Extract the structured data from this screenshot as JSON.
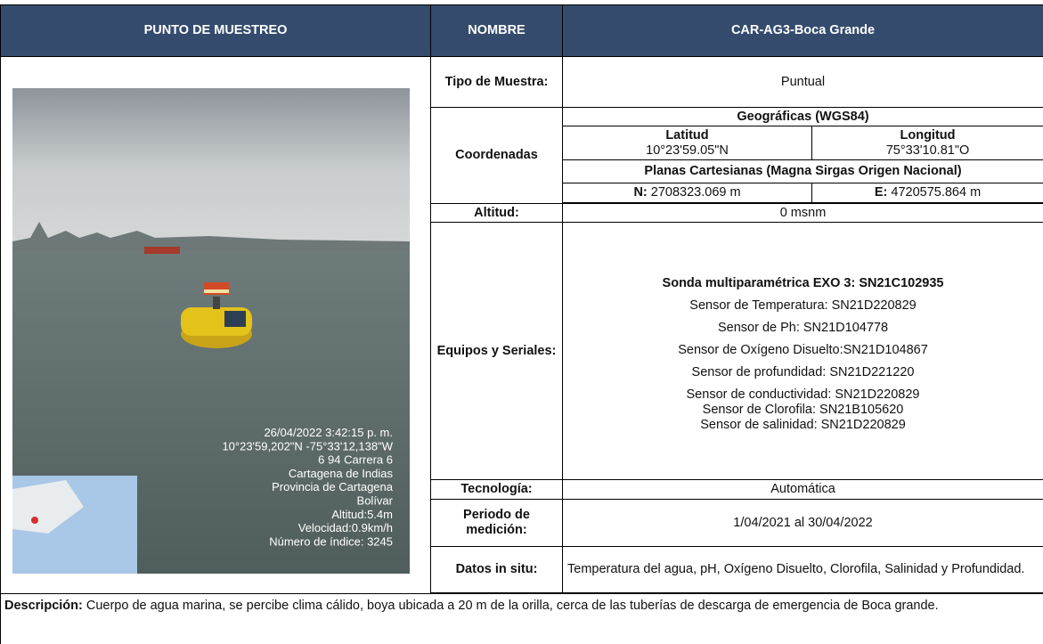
{
  "header": {
    "col1": "PUNTO DE MUESTREO",
    "col2": "NOMBRE",
    "value": "CAR-AG3-Boca Grande"
  },
  "photo": {
    "overlay": [
      "26/04/2022 3:42:15 p. m.",
      "10°23'59,202\"N -75°33'12,138\"W",
      "6 94 Carrera 6",
      "Cartagena de Indias",
      "Provincia de Cartagena",
      "Bolívar",
      "Altitud:5.4m",
      "Velocidad:0.9km/h",
      "Número de índice: 3245"
    ]
  },
  "rows": {
    "tipo": {
      "label": "Tipo de Muestra:",
      "value": "Puntual"
    },
    "coordenadas": {
      "label": "Coordenadas",
      "geo_title": "Geográficas (WGS84)",
      "lat_label": "Latitud",
      "lat_value": "10°23'59.05\"N",
      "lon_label": "Longitud",
      "lon_value": "75°33'10.81\"O",
      "planas_title": "Planas Cartesianas (Magna Sirgas Origen Nacional)",
      "n_label": "N:",
      "n_value": "2708323.069 m",
      "e_label": "E:",
      "e_value": "4720575.864 m"
    },
    "altitud": {
      "label": "Altitud:",
      "value": "0 msnm"
    },
    "equipos": {
      "label": "Equipos y Seriales:",
      "title": "Sonda multiparamétrica EXO 3: SN21C102935",
      "items": [
        "Sensor de Temperatura: SN21D220829",
        "Sensor de Ph: SN21D104778",
        "Sensor de Oxígeno Disuelto:SN21D104867",
        "Sensor de profundidad: SN21D221220",
        "Sensor de conductividad: SN21D220829",
        "Sensor de Clorofila: SN21B105620",
        "Sensor de salinidad: SN21D220829"
      ]
    },
    "tecnologia": {
      "label": "Tecnología:",
      "value": "Automática"
    },
    "periodo": {
      "label": "Periodo de medición:",
      "value": "1/04/2021 al 30/04/2022"
    },
    "datos": {
      "label": "Datos in situ:",
      "value": "Temperatura del agua, pH, Oxígeno Disuelto, Clorofila, Salinidad y Profundidad."
    }
  },
  "description": {
    "label": "Descripción:",
    "text": "Cuerpo de agua marina, se percibe clima cálido, boya ubicada a 20 m de la orilla, cerca de las tuberías de descarga de emergencia de Boca grande."
  }
}
